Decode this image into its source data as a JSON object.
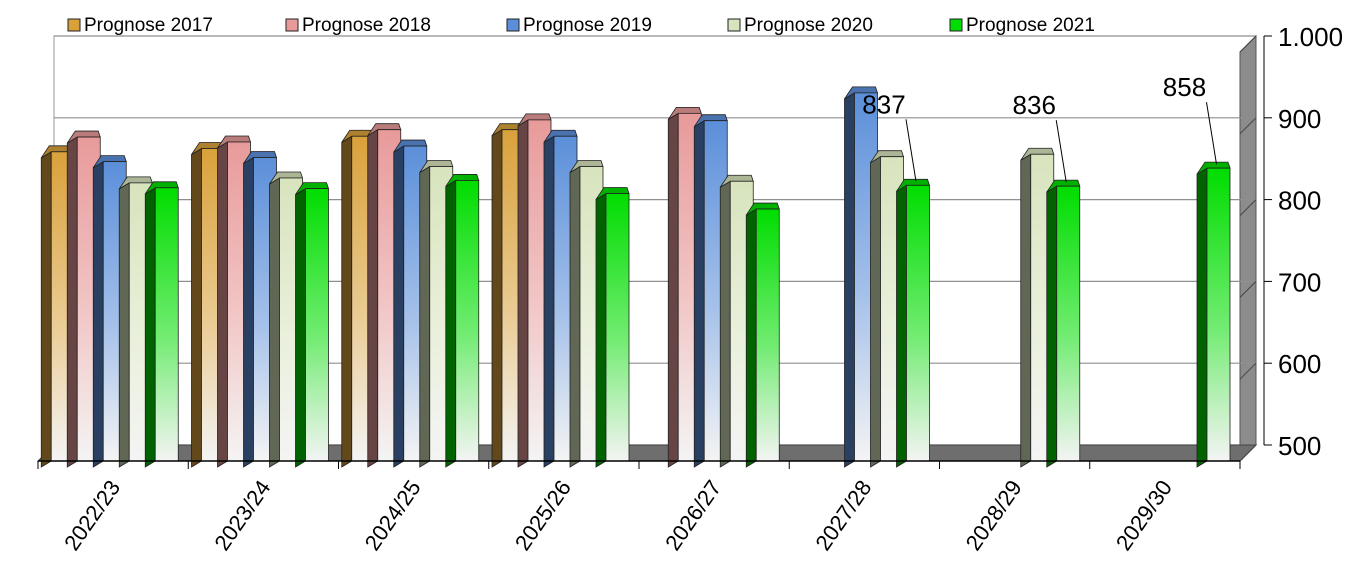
{
  "chart_data": {
    "type": "bar",
    "title": "",
    "xlabel": "",
    "ylabel": "",
    "categories": [
      "2022/23",
      "2023/24",
      "2024/25",
      "2025/26",
      "2026/27",
      "2027/28",
      "2028/29",
      "2029/30"
    ],
    "ylim": [
      500,
      1000
    ],
    "yticks": [
      500,
      600,
      700,
      800,
      900,
      1000
    ],
    "ytick_labels": [
      "500",
      "600",
      "700",
      "800",
      "900",
      "1.000"
    ],
    "grid": true,
    "legend_position": "top",
    "three_d": true,
    "series": [
      {
        "name": "Prognose 2017",
        "color": "#d9a13a",
        "values": [
          878,
          882,
          897,
          905,
          null,
          null,
          null,
          null
        ]
      },
      {
        "name": "Prognose 2018",
        "color": "#e89a9a",
        "values": [
          896,
          890,
          905,
          917,
          925,
          null,
          null,
          null
        ]
      },
      {
        "name": "Prognose 2019",
        "color": "#5b8fd9",
        "values": [
          866,
          871,
          885,
          897,
          916,
          950,
          null,
          null
        ]
      },
      {
        "name": "Prognose 2020",
        "color": "#d7e4bd",
        "values": [
          840,
          846,
          860,
          860,
          842,
          872,
          875,
          null
        ]
      },
      {
        "name": "Prognose 2021",
        "color": "#00dd00",
        "values": [
          834,
          833,
          843,
          827,
          808,
          837,
          836,
          858
        ]
      }
    ],
    "data_labels": [
      {
        "series": "Prognose 2021",
        "category": "2027/28",
        "text": "837"
      },
      {
        "series": "Prognose 2021",
        "category": "2028/29",
        "text": "836"
      },
      {
        "series": "Prognose 2021",
        "category": "2029/30",
        "text": "858"
      }
    ]
  }
}
